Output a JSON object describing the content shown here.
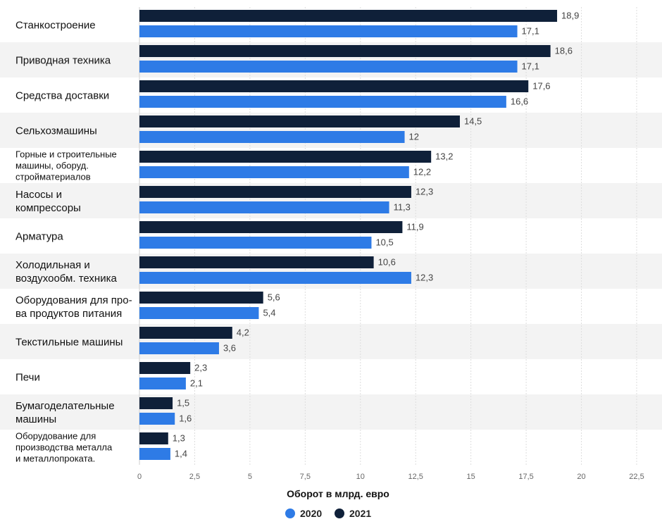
{
  "chart_data": {
    "type": "bar",
    "orientation": "horizontal",
    "categories": [
      [
        "Станкостроение"
      ],
      [
        "Приводная техника"
      ],
      [
        "Средства доставки"
      ],
      [
        "Сельхозмашины"
      ],
      [
        "Горные и строительные",
        "машины, оборуд.",
        "стройматериалов"
      ],
      [
        "Насосы и",
        "компрессоры"
      ],
      [
        "Арматура"
      ],
      [
        "Холодильная и",
        "воздухообм. техника"
      ],
      [
        "Оборудования для про-",
        "ва продуктов питания"
      ],
      [
        "Текстильные машины"
      ],
      [
        "Печи"
      ],
      [
        "Бумагоделательные",
        "машины"
      ],
      [
        "Оборудование для",
        "производства металла",
        "и металлопроката."
      ]
    ],
    "series": [
      {
        "name": "2021",
        "color": "#0f2039",
        "values": [
          18.9,
          18.6,
          17.6,
          14.5,
          13.2,
          12.3,
          11.9,
          10.6,
          5.6,
          4.2,
          2.3,
          1.5,
          1.3
        ],
        "labels": [
          "18,9",
          "18,6",
          "17,6",
          "14,5",
          "13,2",
          "12,3",
          "11,9",
          "10,6",
          "5,6",
          "4,2",
          "2,3",
          "1,5",
          "1,3"
        ]
      },
      {
        "name": "2020",
        "color": "#2e7be6",
        "values": [
          17.1,
          17.1,
          16.6,
          12,
          12.2,
          11.3,
          10.5,
          12.3,
          5.4,
          3.6,
          2.1,
          1.6,
          1.4
        ],
        "labels": [
          "17,1",
          "17,1",
          "16,6",
          "12",
          "12,2",
          "11,3",
          "10,5",
          "12,3",
          "5,4",
          "3,6",
          "2,1",
          "1,6",
          "1,4"
        ]
      }
    ],
    "xlabel": "Оборот в млрд. евро",
    "xlim": [
      0,
      22.5
    ],
    "ticks": [
      0,
      2.5,
      5,
      7.5,
      10,
      12.5,
      15,
      17.5,
      20,
      22.5
    ],
    "tick_labels": [
      "0",
      "2,5",
      "5",
      "7,5",
      "10",
      "12,5",
      "15",
      "17,5",
      "20",
      "22,5"
    ],
    "grid": true,
    "legend": {
      "position": "bottom",
      "items": [
        {
          "name": "2020",
          "color": "#2e7be6"
        },
        {
          "name": "2021",
          "color": "#0f2039"
        }
      ]
    }
  }
}
